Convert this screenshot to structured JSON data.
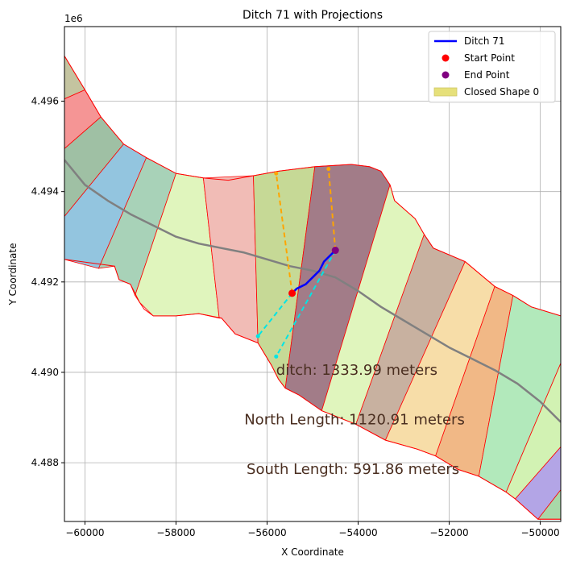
{
  "chart_data": {
    "type": "map",
    "title": "Ditch 71 with Projections",
    "xlabel": "X Coordinate",
    "ylabel": "Y Coordinate",
    "y_offset_label": "1e6",
    "xlim": [
      -60450,
      -49550
    ],
    "ylim": [
      4486700,
      4497650
    ],
    "x_ticks": [
      -60000,
      -58000,
      -56000,
      -54000,
      -52000,
      -50000
    ],
    "x_tick_labels": [
      "−60000",
      "−58000",
      "−56000",
      "−54000",
      "−52000",
      "−50000"
    ],
    "y_ticks": [
      4488000,
      4490000,
      4492000,
      4494000,
      4496000
    ],
    "y_tick_labels": [
      "4.488",
      "4.490",
      "4.492",
      "4.494",
      "4.496"
    ],
    "grid": true,
    "legend_position": "top-right",
    "legend": [
      {
        "label": "Ditch 71",
        "kind": "line",
        "color": "#0000ff"
      },
      {
        "label": "Start Point",
        "kind": "dot",
        "color": "#ff0000"
      },
      {
        "label": "End Point",
        "kind": "dot",
        "color": "#800080"
      },
      {
        "label": "Closed Shape 0",
        "kind": "patch",
        "color": "#e6e07a"
      }
    ],
    "annotations": [
      {
        "text": "ditch: 1333.99 meters",
        "x": -55800,
        "y": 4489950
      },
      {
        "text": "North Length: 1120.91 meters",
        "x": -56500,
        "y": 4488850
      },
      {
        "text": "South Length: 591.86 meters",
        "x": -56450,
        "y": 4487750
      }
    ],
    "outline": [
      [
        -60450,
        4497000
      ],
      [
        -60000,
        4496250
      ],
      [
        -59650,
        4495650
      ],
      [
        -59150,
        4495050
      ],
      [
        -58650,
        4494750
      ],
      [
        -58000,
        4494400
      ],
      [
        -57400,
        4494300
      ],
      [
        -56850,
        4494250
      ],
      [
        -56300,
        4494350
      ],
      [
        -55750,
        4494450
      ],
      [
        -54950,
        4494550
      ],
      [
        -54150,
        4494600
      ],
      [
        -53750,
        4494550
      ],
      [
        -53500,
        4494450
      ],
      [
        -53300,
        4494150
      ],
      [
        -53200,
        4493800
      ],
      [
        -52750,
        4493400
      ],
      [
        -52550,
        4493050
      ],
      [
        -52350,
        4492750
      ],
      [
        -51650,
        4492450
      ],
      [
        -51000,
        4491900
      ],
      [
        -50600,
        4491700
      ],
      [
        -50200,
        4491450
      ],
      [
        -49550,
        4491250
      ],
      [
        -49550,
        4486750
      ],
      [
        -50050,
        4486750
      ],
      [
        -50550,
        4487200
      ],
      [
        -50750,
        4487350
      ],
      [
        -51350,
        4487700
      ],
      [
        -51800,
        4487850
      ],
      [
        -52300,
        4488150
      ],
      [
        -52700,
        4488300
      ],
      [
        -53400,
        4488500
      ],
      [
        -54050,
        4488850
      ],
      [
        -54800,
        4489150
      ],
      [
        -55300,
        4489500
      ],
      [
        -55600,
        4489650
      ],
      [
        -55750,
        4489850
      ],
      [
        -55900,
        4490150
      ],
      [
        -56200,
        4490650
      ],
      [
        -56700,
        4490850
      ],
      [
        -57000,
        4491200
      ],
      [
        -57500,
        4491300
      ],
      [
        -58000,
        4491250
      ],
      [
        -58500,
        4491250
      ],
      [
        -58700,
        4491400
      ],
      [
        -58800,
        4491550
      ],
      [
        -59000,
        4491950
      ],
      [
        -59250,
        4492050
      ],
      [
        -59350,
        4492350
      ],
      [
        -60450,
        4492500
      ]
    ],
    "shapes": [
      {
        "color": "#c4c4a0",
        "polygon": [
          [
            -60450,
            4497000
          ],
          [
            -60000,
            4496250
          ],
          [
            -60450,
            4496050
          ]
        ]
      },
      {
        "color": "#f59595",
        "polygon": [
          [
            -60450,
            4496050
          ],
          [
            -60000,
            4496250
          ],
          [
            -59650,
            4495650
          ],
          [
            -60450,
            4494950
          ]
        ]
      },
      {
        "color": "#9fc0a4",
        "polygon": [
          [
            -60450,
            4494950
          ],
          [
            -59650,
            4495650
          ],
          [
            -59150,
            4495050
          ],
          [
            -60450,
            4493450
          ]
        ]
      },
      {
        "color": "#93c5df",
        "polygon": [
          [
            -60450,
            4493450
          ],
          [
            -59150,
            4495050
          ],
          [
            -58650,
            4494750
          ],
          [
            -59700,
            4492300
          ],
          [
            -60450,
            4492500
          ]
        ]
      },
      {
        "color": "#a8d2b8",
        "polygon": [
          [
            -59700,
            4492300
          ],
          [
            -58650,
            4494750
          ],
          [
            -58000,
            4494400
          ],
          [
            -58900,
            4491700
          ],
          [
            -59000,
            4491950
          ],
          [
            -59250,
            4492050
          ],
          [
            -59350,
            4492350
          ]
        ]
      },
      {
        "color": "#e0f5bd",
        "polygon": [
          [
            -58900,
            4491700
          ],
          [
            -58000,
            4494400
          ],
          [
            -57400,
            4494300
          ],
          [
            -57050,
            4491200
          ],
          [
            -57500,
            4491300
          ],
          [
            -58000,
            4491250
          ],
          [
            -58500,
            4491250
          ],
          [
            -58800,
            4491550
          ]
        ]
      },
      {
        "color": "#f1bcb6",
        "polygon": [
          [
            -57050,
            4491200
          ],
          [
            -57400,
            4494300
          ],
          [
            -56300,
            4494350
          ],
          [
            -56200,
            4490650
          ],
          [
            -56700,
            4490850
          ],
          [
            -57000,
            4491200
          ]
        ]
      },
      {
        "color": "#c6d996",
        "polygon": [
          [
            -56200,
            4490650
          ],
          [
            -56300,
            4494350
          ],
          [
            -55750,
            4494450
          ],
          [
            -54950,
            4494550
          ],
          [
            -55600,
            4489650
          ],
          [
            -55750,
            4489850
          ],
          [
            -55900,
            4490150
          ]
        ]
      },
      {
        "color": "#a27c88",
        "polygon": [
          [
            -55600,
            4489650
          ],
          [
            -54950,
            4494550
          ],
          [
            -54150,
            4494600
          ],
          [
            -53750,
            4494550
          ],
          [
            -53500,
            4494450
          ],
          [
            -53300,
            4494150
          ],
          [
            -54800,
            4489150
          ],
          [
            -55300,
            4489500
          ]
        ]
      },
      {
        "color": "#e0f5bd",
        "polygon": [
          [
            -54800,
            4489150
          ],
          [
            -53300,
            4494150
          ],
          [
            -53200,
            4493800
          ],
          [
            -52750,
            4493400
          ],
          [
            -52550,
            4493050
          ],
          [
            -54050,
            4488850
          ]
        ]
      },
      {
        "color": "#c8b1a0",
        "polygon": [
          [
            -54050,
            4488850
          ],
          [
            -52550,
            4493050
          ],
          [
            -52350,
            4492750
          ],
          [
            -51650,
            4492450
          ],
          [
            -53400,
            4488500
          ]
        ]
      },
      {
        "color": "#f7dda8",
        "polygon": [
          [
            -53400,
            4488500
          ],
          [
            -51650,
            4492450
          ],
          [
            -51000,
            4491900
          ],
          [
            -52300,
            4488150
          ],
          [
            -52700,
            4488300
          ]
        ]
      },
      {
        "color": "#f1b886",
        "polygon": [
          [
            -52300,
            4488150
          ],
          [
            -51000,
            4491900
          ],
          [
            -50600,
            4491700
          ],
          [
            -51350,
            4487700
          ],
          [
            -51800,
            4487850
          ]
        ]
      },
      {
        "color": "#b2e9bb",
        "polygon": [
          [
            -51350,
            4487700
          ],
          [
            -50600,
            4491700
          ],
          [
            -50200,
            4491450
          ],
          [
            -49550,
            4491250
          ],
          [
            -49550,
            4490200
          ],
          [
            -50750,
            4487350
          ]
        ]
      },
      {
        "color": "#d2f2b3",
        "polygon": [
          [
            -50750,
            4487350
          ],
          [
            -49550,
            4490200
          ],
          [
            -49550,
            4488350
          ],
          [
            -50550,
            4487200
          ]
        ]
      },
      {
        "color": "#b3a5e6",
        "polygon": [
          [
            -50550,
            4487200
          ],
          [
            -49550,
            4488350
          ],
          [
            -49550,
            4487400
          ],
          [
            -50050,
            4486750
          ]
        ]
      },
      {
        "color": "#a8d8a8",
        "polygon": [
          [
            -50050,
            4486750
          ],
          [
            -49550,
            4487400
          ],
          [
            -49550,
            4486750
          ]
        ]
      }
    ],
    "center_line": {
      "color": "#808080",
      "points": [
        [
          -60450,
          4494700
        ],
        [
          -60000,
          4494150
        ],
        [
          -59500,
          4493800
        ],
        [
          -59000,
          4493500
        ],
        [
          -58500,
          4493250
        ],
        [
          -58000,
          4493000
        ],
        [
          -57500,
          4492850
        ],
        [
          -57000,
          4492750
        ],
        [
          -56500,
          4492650
        ],
        [
          -56000,
          4492500
        ],
        [
          -55500,
          4492350
        ],
        [
          -55000,
          4492250
        ],
        [
          -54500,
          4492100
        ],
        [
          -54000,
          4491800
        ],
        [
          -53500,
          4491450
        ],
        [
          -53000,
          4491150
        ],
        [
          -52500,
          4490850
        ],
        [
          -52000,
          4490550
        ],
        [
          -51500,
          4490300
        ],
        [
          -51000,
          4490050
        ],
        [
          -50500,
          4489750
        ],
        [
          -50000,
          4489350
        ],
        [
          -49550,
          4488900
        ]
      ]
    },
    "ditch": {
      "name": "Ditch 71",
      "color": "#0000ff",
      "points": [
        [
          -55450,
          4491750
        ],
        [
          -55350,
          4491850
        ],
        [
          -55150,
          4491950
        ],
        [
          -55000,
          4492100
        ],
        [
          -54850,
          4492250
        ],
        [
          -54750,
          4492450
        ],
        [
          -54550,
          4492650
        ],
        [
          -54500,
          4492700
        ]
      ]
    },
    "start_point": {
      "x": -55450,
      "y": 4491750,
      "color": "#ff0000"
    },
    "end_point": {
      "x": -54500,
      "y": 4492700,
      "color": "#800080"
    },
    "north_projections": {
      "color": "#ffa500",
      "lines": [
        [
          [
            -55450,
            4491750
          ],
          [
            -55800,
            4494400
          ]
        ],
        [
          [
            -54500,
            4492700
          ],
          [
            -54650,
            4494500
          ]
        ]
      ]
    },
    "south_projections": {
      "color": "#00e5e5",
      "lines": [
        [
          [
            -55450,
            4491750
          ],
          [
            -56200,
            4490800
          ]
        ],
        [
          [
            -54500,
            4492700
          ],
          [
            -55800,
            4490350
          ]
        ]
      ]
    }
  }
}
